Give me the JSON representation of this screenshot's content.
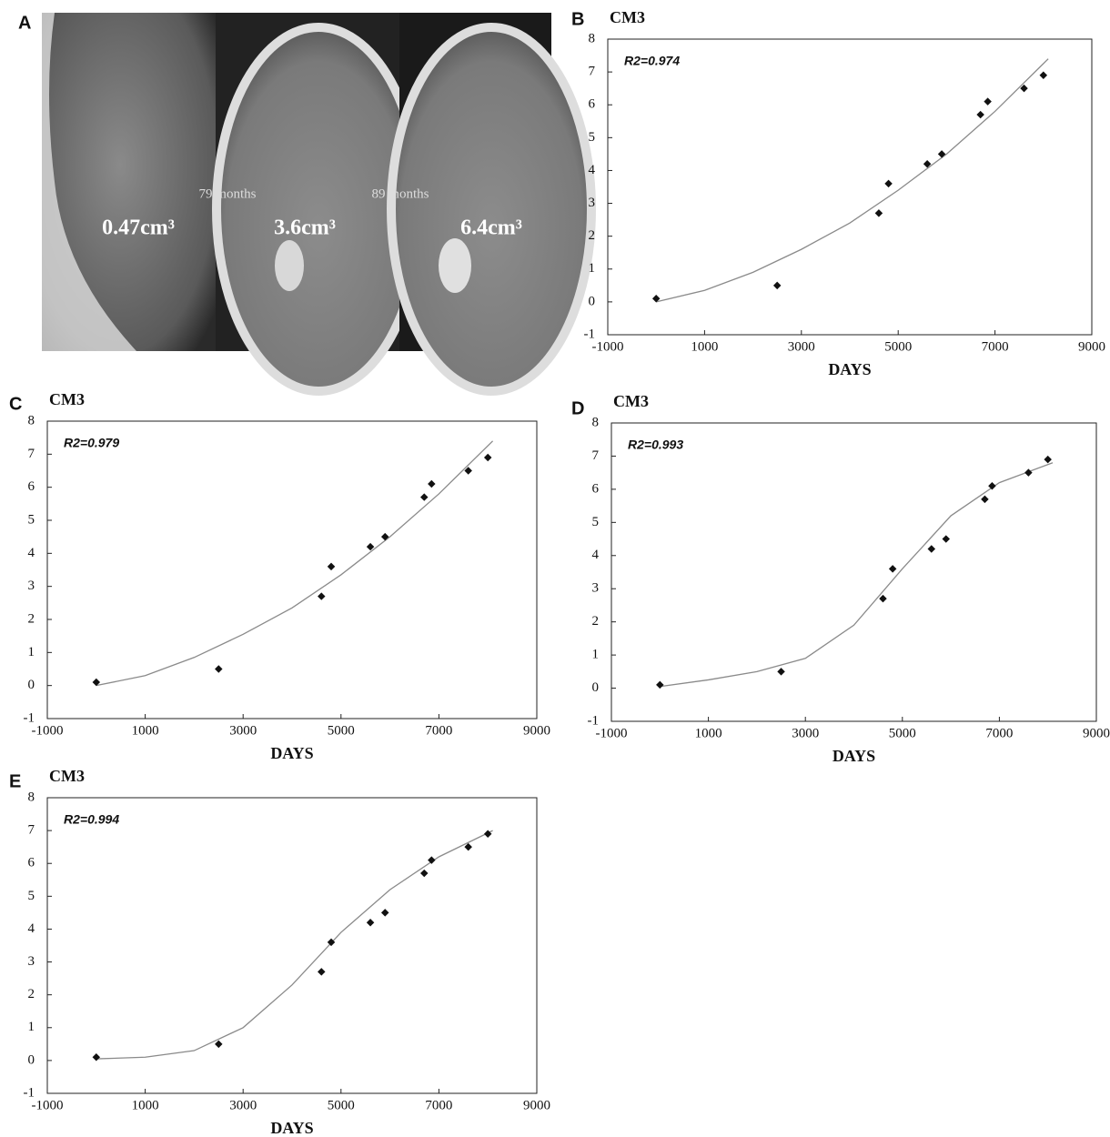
{
  "image_panel": {
    "panel_label": "A",
    "volumes": [
      "0.47cm³",
      "3.6cm³",
      "6.4cm³"
    ],
    "intervals": [
      "79 months",
      "89 months"
    ]
  },
  "chart_data": [
    {
      "type": "scatter",
      "panel_label": "B",
      "y_label": "CM3",
      "x_label": "DAYS",
      "annotation": "R2=0.974",
      "x": [
        0,
        2500,
        4600,
        4800,
        5600,
        5900,
        6700,
        6850,
        7600,
        8000
      ],
      "values": [
        0.1,
        0.5,
        2.7,
        3.6,
        4.2,
        4.5,
        5.7,
        6.1,
        6.5,
        6.9
      ],
      "color": "#111111",
      "fit": {
        "x": [
          0,
          1000,
          2000,
          3000,
          4000,
          5000,
          6000,
          7000,
          8100
        ],
        "values": [
          0,
          0.35,
          0.9,
          1.6,
          2.4,
          3.4,
          4.5,
          5.8,
          7.4
        ],
        "color": "#8a8a8a"
      },
      "xlim": [
        -1000,
        9000
      ],
      "ylim": [
        -1,
        8
      ],
      "xticks": [
        -1000,
        1000,
        3000,
        5000,
        7000,
        9000
      ],
      "yticks": [
        -1,
        0,
        1,
        2,
        3,
        4,
        5,
        6,
        7,
        8
      ]
    },
    {
      "type": "scatter",
      "panel_label": "C",
      "y_label": "CM3",
      "x_label": "DAYS",
      "annotation": "R2=0.979",
      "x": [
        0,
        2500,
        4600,
        4800,
        5600,
        5900,
        6700,
        6850,
        7600,
        8000
      ],
      "values": [
        0.1,
        0.5,
        2.7,
        3.6,
        4.2,
        4.5,
        5.7,
        6.1,
        6.5,
        6.9
      ],
      "color": "#111111",
      "fit": {
        "x": [
          0,
          1000,
          2000,
          3000,
          4000,
          5000,
          6000,
          7000,
          8100
        ],
        "values": [
          0,
          0.3,
          0.85,
          1.55,
          2.35,
          3.35,
          4.5,
          5.8,
          7.4
        ],
        "color": "#8a8a8a"
      },
      "xlim": [
        -1000,
        9000
      ],
      "ylim": [
        -1,
        8
      ],
      "xticks": [
        -1000,
        1000,
        3000,
        5000,
        7000,
        9000
      ],
      "yticks": [
        -1,
        0,
        1,
        2,
        3,
        4,
        5,
        6,
        7,
        8
      ]
    },
    {
      "type": "scatter",
      "panel_label": "D",
      "y_label": "CM3",
      "x_label": "DAYS",
      "annotation": "R2=0.993",
      "x": [
        0,
        2500,
        4600,
        4800,
        5600,
        5900,
        6700,
        6850,
        7600,
        8000
      ],
      "values": [
        0.1,
        0.5,
        2.7,
        3.6,
        4.2,
        4.5,
        5.7,
        6.1,
        6.5,
        6.9
      ],
      "color": "#111111",
      "fit": {
        "x": [
          0,
          1000,
          2000,
          3000,
          4000,
          5000,
          6000,
          7000,
          8100
        ],
        "values": [
          0.05,
          0.25,
          0.5,
          0.9,
          1.9,
          3.6,
          5.2,
          6.2,
          6.8
        ],
        "color": "#8a8a8a"
      },
      "xlim": [
        -1000,
        9000
      ],
      "ylim": [
        -1,
        8
      ],
      "xticks": [
        -1000,
        1000,
        3000,
        5000,
        7000,
        9000
      ],
      "yticks": [
        -1,
        0,
        1,
        2,
        3,
        4,
        5,
        6,
        7,
        8
      ]
    },
    {
      "type": "scatter",
      "panel_label": "E",
      "y_label": "CM3",
      "x_label": "DAYS",
      "annotation": "R2=0.994",
      "x": [
        0,
        2500,
        4600,
        4800,
        5600,
        5900,
        6700,
        6850,
        7600,
        8000
      ],
      "values": [
        0.1,
        0.5,
        2.7,
        3.6,
        4.2,
        4.5,
        5.7,
        6.1,
        6.5,
        6.9
      ],
      "color": "#111111",
      "fit": {
        "x": [
          0,
          1000,
          2000,
          3000,
          4000,
          5000,
          6000,
          7000,
          8100
        ],
        "values": [
          0.05,
          0.1,
          0.3,
          1.0,
          2.3,
          3.9,
          5.2,
          6.2,
          7.0
        ],
        "color": "#8a8a8a"
      },
      "xlim": [
        -1000,
        9000
      ],
      "ylim": [
        -1,
        8
      ],
      "xticks": [
        -1000,
        1000,
        3000,
        5000,
        7000,
        9000
      ],
      "yticks": [
        -1,
        0,
        1,
        2,
        3,
        4,
        5,
        6,
        7,
        8
      ]
    }
  ]
}
